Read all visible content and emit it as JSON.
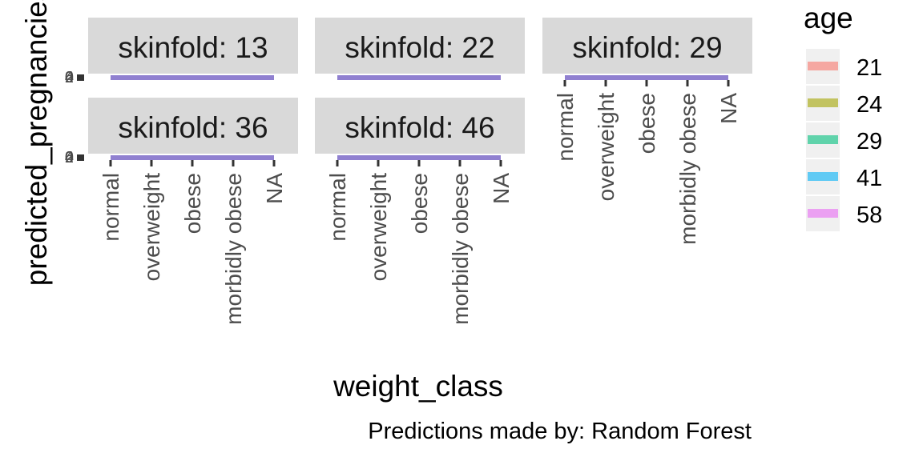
{
  "chart_data": {
    "type": "bar",
    "facet_variable": "skinfold",
    "panels": [
      {
        "strip_label": "skinfold: 13",
        "show_x_axis": false,
        "show_y_axis": true
      },
      {
        "strip_label": "skinfold: 22",
        "show_x_axis": false,
        "show_y_axis": false
      },
      {
        "strip_label": "skinfold: 29",
        "show_x_axis": true,
        "show_y_axis": false
      },
      {
        "strip_label": "skinfold: 36",
        "show_x_axis": true,
        "show_y_axis": true
      },
      {
        "strip_label": "skinfold: 46",
        "show_x_axis": true,
        "show_y_axis": false
      }
    ],
    "categories": [
      "normal",
      "overweight",
      "obese",
      "morbidly obese",
      "NA"
    ],
    "xlabel": "weight_class",
    "ylabel": "predicted_pregnancies",
    "y_tick_labels": [
      "0",
      "2",
      "4",
      "6"
    ],
    "legend": {
      "title": "age",
      "position": "right",
      "items": [
        {
          "label": "21",
          "color": "#F8766D"
        },
        {
          "label": "24",
          "color": "#A3A500"
        },
        {
          "label": "29",
          "color": "#00BF7D"
        },
        {
          "label": "41",
          "color": "#00B0F6"
        },
        {
          "label": "58",
          "color": "#E76BF3"
        }
      ]
    },
    "caption": "Predictions made by: Random Forest",
    "bar_color": "#9080D0",
    "strip_fill": "#D9D9D9",
    "legend_key_bg": "#F0F0F0",
    "fill_alpha": 0.6
  }
}
